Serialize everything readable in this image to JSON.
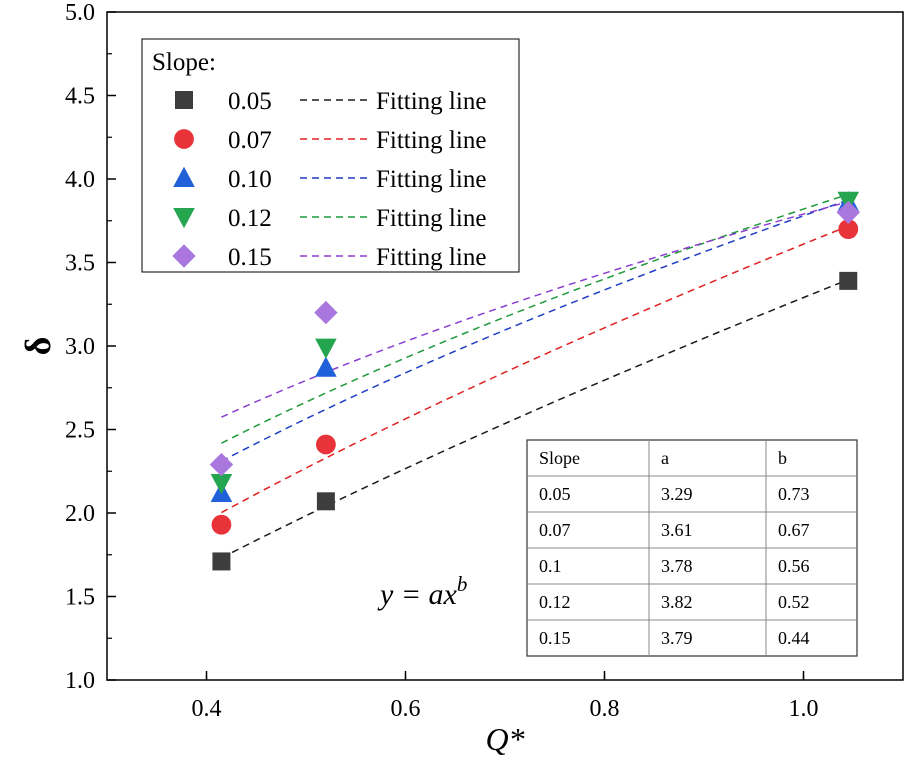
{
  "chart_data": {
    "type": "scatter",
    "title": "",
    "xlabel": "Q*",
    "ylabel": "δ",
    "xlim": [
      0.3,
      1.1
    ],
    "ylim": [
      1.0,
      5.0
    ],
    "xticks": [
      0.4,
      0.6,
      0.8,
      1.0
    ],
    "xtick_labels": [
      "0.4",
      "0.6",
      "0.8",
      "1.0"
    ],
    "yticks": [
      1.0,
      1.5,
      2.0,
      2.5,
      3.0,
      3.5,
      4.0,
      4.5,
      5.0
    ],
    "ytick_labels": [
      "1.0",
      "1.5",
      "2.0",
      "2.5",
      "3.0",
      "3.5",
      "4.0",
      "4.5",
      "5.0"
    ],
    "legend_title": "Slope:",
    "legend_position": "top-left",
    "fit_label": "Fitting line",
    "fit_x_range": [
      0.415,
      1.045
    ],
    "series": [
      {
        "name": "0.05",
        "marker": "square",
        "color": "#3d3d3d",
        "fit_color": "#1a1a1a",
        "x": [
          0.415,
          0.52,
          1.045
        ],
        "y": [
          1.71,
          2.07,
          3.39
        ],
        "a": 3.29,
        "b": 0.73
      },
      {
        "name": "0.07",
        "marker": "circle",
        "color": "#e8333a",
        "fit_color": "#e02020",
        "x": [
          0.415,
          0.52,
          1.045
        ],
        "y": [
          1.93,
          2.41,
          3.7
        ],
        "a": 3.61,
        "b": 0.67
      },
      {
        "name": "0.10",
        "marker": "triangle-up",
        "color": "#2060d8",
        "fit_color": "#1f3fc4",
        "x": [
          0.415,
          0.52,
          1.045
        ],
        "y": [
          2.12,
          2.87,
          3.86
        ],
        "a": 3.78,
        "b": 0.56
      },
      {
        "name": "0.12",
        "marker": "triangle-down",
        "color": "#25a550",
        "fit_color": "#1f9a3a",
        "x": [
          0.415,
          0.52,
          1.045
        ],
        "y": [
          2.18,
          2.99,
          3.87
        ],
        "a": 3.82,
        "b": 0.52
      },
      {
        "name": "0.15",
        "marker": "diamond",
        "color": "#a977dd",
        "fit_color": "#8a3fd0",
        "x": [
          0.415,
          0.52,
          1.045
        ],
        "y": [
          2.29,
          3.2,
          3.8
        ],
        "a": 3.79,
        "b": 0.44
      }
    ],
    "annotation": "y = ax^b",
    "table": {
      "headers": [
        "Slope",
        "a",
        "b"
      ],
      "rows": [
        [
          "0.05",
          "3.29",
          "0.73"
        ],
        [
          "0.07",
          "3.61",
          "0.67"
        ],
        [
          "0.1",
          "3.78",
          "0.56"
        ],
        [
          "0.12",
          "3.82",
          "0.52"
        ],
        [
          "0.15",
          "3.79",
          "0.44"
        ]
      ]
    }
  }
}
